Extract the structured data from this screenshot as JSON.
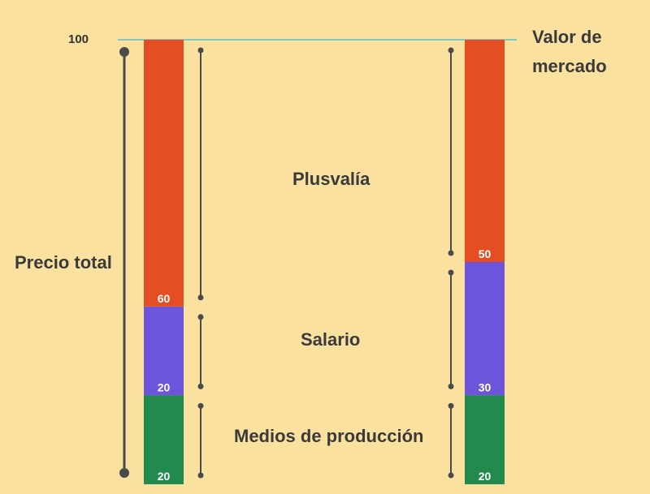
{
  "chart_data": {
    "type": "bar",
    "stacked": true,
    "y_max_label": "100",
    "ylim": [
      0,
      100
    ],
    "categories": [
      "Precio total",
      "Valor de mercado"
    ],
    "segments": [
      {
        "label": "Medios de producción",
        "color": "#22894f",
        "values": [
          20,
          20
        ]
      },
      {
        "label": "Salario",
        "color": "#6c55db",
        "values": [
          20,
          30
        ]
      },
      {
        "label": "Plusvalía",
        "color": "#e44e22",
        "values": [
          60,
          50
        ]
      }
    ],
    "reference_line_color": "#8cc4b4"
  }
}
